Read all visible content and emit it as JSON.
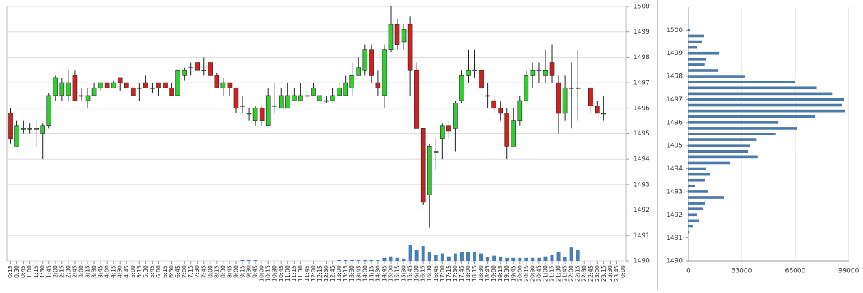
{
  "chart_data": [
    {
      "type": "candlestick",
      "categories": [
        "0:15",
        "0:30",
        "0:45",
        "1:00",
        "1:15",
        "1:30",
        "1:45",
        "2:00",
        "2:15",
        "2:30",
        "2:45",
        "3:00",
        "3:15",
        "3:30",
        "3:45",
        "4:00",
        "4:15",
        "4:30",
        "4:45",
        "5:00",
        "5:15",
        "5:30",
        "5:45",
        "6:00",
        "6:15",
        "6:30",
        "6:45",
        "7:00",
        "7:15",
        "7:30",
        "7:45",
        "8:00",
        "8:15",
        "8:30",
        "8:45",
        "9:00",
        "9:15",
        "9:30",
        "9:45",
        "10:00",
        "10:15",
        "10:30",
        "10:45",
        "11:00",
        "11:15",
        "11:30",
        "11:45",
        "12:00",
        "12:15",
        "12:30",
        "12:45",
        "13:00",
        "13:15",
        "13:30",
        "13:45",
        "14:00",
        "14:15",
        "14:30",
        "14:45",
        "15:00",
        "15:15",
        "15:30",
        "15:45",
        "16:00",
        "16:15",
        "16:30",
        "16:45",
        "17:00",
        "17:15",
        "17:30",
        "17:45",
        "18:00",
        "18:15",
        "18:30",
        "18:45",
        "19:00",
        "19:15",
        "19:30",
        "19:45",
        "20:00",
        "20:15",
        "20:30",
        "20:45",
        "21:00",
        "21:15",
        "21:30",
        "21:45",
        "22:00",
        "22:15",
        "22:30",
        "22:45",
        "23:00",
        "23:15",
        "23:30",
        "23:45",
        "0:00"
      ],
      "open": [
        1495.8,
        1494.5,
        1495.2,
        1495.2,
        1495.2,
        1495.0,
        1495.3,
        1496.5,
        1496.5,
        1496.5,
        1497.3,
        1496.5,
        1496.3,
        1496.5,
        1496.8,
        1497.0,
        1496.8,
        1497.2,
        1497.0,
        1496.8,
        1496.8,
        1497.0,
        1496.8,
        1497.0,
        1497.0,
        1496.8,
        1496.5,
        1497.3,
        1497.6,
        1497.8,
        1497.5,
        1497.8,
        1497.3,
        1496.8,
        1497.0,
        1496.8,
        1496.1,
        1495.8,
        1495.5,
        1496.0,
        1495.3,
        1496.1,
        1496.0,
        1496.0,
        1496.3,
        1496.3,
        1496.5,
        1496.5,
        1496.3,
        1496.3,
        1496.3,
        1496.5,
        1496.5,
        1496.8,
        1497.3,
        1497.5,
        1498.3,
        1497.0,
        1496.5,
        1498.3,
        1499.3,
        1498.6,
        1499.3,
        1497.5,
        1495.2,
        1492.6,
        1494.3,
        1494.8,
        1495.3,
        1495.2,
        1496.3,
        1497.3,
        1497.5,
        1497.5,
        1496.5,
        1496.3,
        1496.0,
        1495.8,
        1494.5,
        1495.5,
        1496.3,
        1497.3,
        1497.5,
        1497.3,
        1497.8,
        1497.0,
        1495.8,
        1496.8,
        1496.8,
        null,
        1496.8,
        1496.1,
        1495.8,
        null,
        null,
        null
      ],
      "high": [
        1496.0,
        1495.5,
        1495.5,
        1495.4,
        1495.5,
        1495.4,
        1496.6,
        1497.3,
        1497.2,
        1497.5,
        1497.5,
        1496.8,
        1496.8,
        1497.0,
        1497.0,
        1497.0,
        1497.1,
        1497.2,
        1497.0,
        1496.9,
        1497.0,
        1497.3,
        1497.0,
        1497.0,
        1497.0,
        1497.0,
        1497.6,
        1497.6,
        1497.8,
        1497.8,
        1498.0,
        1497.8,
        1497.4,
        1497.2,
        1497.0,
        1496.8,
        1496.5,
        1496.0,
        1496.1,
        1496.1,
        1496.8,
        1497.0,
        1496.8,
        1497.0,
        1496.8,
        1497.0,
        1496.8,
        1497.0,
        1496.8,
        1496.5,
        1496.8,
        1497.0,
        1497.3,
        1497.8,
        1498.0,
        1498.5,
        1498.5,
        1497.5,
        1498.5,
        1500.0,
        1499.5,
        1499.3,
        1499.6,
        1497.8,
        1495.2,
        1494.6,
        1494.8,
        1495.4,
        1495.5,
        1496.3,
        1497.5,
        1498.3,
        1498.3,
        1497.6,
        1497.0,
        1496.5,
        1496.3,
        1496.0,
        1496.0,
        1496.5,
        1497.5,
        1497.8,
        1497.8,
        1498.3,
        1498.5,
        1497.3,
        1497.3,
        1497.8,
        1498.3,
        null,
        1496.8,
        1496.3,
        1496.5,
        null,
        null,
        null
      ],
      "low": [
        1494.6,
        1494.5,
        1495.0,
        1495.0,
        1494.5,
        1494.0,
        1495.2,
        1496.3,
        1496.3,
        1496.3,
        1496.3,
        1496.3,
        1496.0,
        1496.5,
        1496.7,
        1496.8,
        1496.8,
        1496.7,
        1496.8,
        1496.5,
        1496.3,
        1496.8,
        1496.6,
        1496.5,
        1496.8,
        1496.5,
        1496.5,
        1497.1,
        1497.3,
        1497.5,
        1497.3,
        1497.3,
        1496.8,
        1496.5,
        1496.5,
        1495.8,
        1495.8,
        1495.5,
        1495.3,
        1495.3,
        1495.3,
        1495.8,
        1496.0,
        1496.0,
        1496.3,
        1496.3,
        1496.3,
        1496.5,
        1496.3,
        1496.2,
        1496.3,
        1496.5,
        1496.5,
        1496.5,
        1497.3,
        1497.3,
        1497.0,
        1496.5,
        1496.0,
        1498.2,
        1498.3,
        1498.3,
        1496.5,
        1495.2,
        1492.2,
        1491.3,
        1493.6,
        1494.0,
        1494.8,
        1494.3,
        1496.2,
        1497.0,
        1497.2,
        1496.8,
        1496.0,
        1495.8,
        1495.5,
        1494.0,
        1494.5,
        1495.3,
        1496.3,
        1496.8,
        1497.0,
        1497.0,
        1497.0,
        1495.0,
        1495.5,
        1495.2,
        1495.5,
        null,
        1495.8,
        1495.8,
        1495.5,
        null,
        null,
        null
      ],
      "close": [
        1494.8,
        1495.3,
        1495.2,
        1495.2,
        1495.2,
        1495.3,
        1496.5,
        1497.2,
        1497.0,
        1497.0,
        1496.3,
        1496.5,
        1496.5,
        1496.8,
        1497.0,
        1496.8,
        1497.0,
        1497.0,
        1496.8,
        1496.5,
        1496.8,
        1496.8,
        1496.8,
        1496.8,
        1496.8,
        1496.5,
        1497.5,
        1497.5,
        1497.6,
        1497.5,
        1497.5,
        1497.3,
        1496.8,
        1497.0,
        1496.8,
        1496.0,
        1496.1,
        1495.8,
        1496.0,
        1495.5,
        1496.5,
        1496.1,
        1496.5,
        1496.5,
        1496.5,
        1496.5,
        1496.5,
        1496.8,
        1496.5,
        1496.3,
        1496.5,
        1496.8,
        1497.0,
        1497.3,
        1497.6,
        1498.3,
        1497.3,
        1496.8,
        1498.3,
        1499.3,
        1498.5,
        1499.1,
        1497.5,
        1495.2,
        1492.3,
        1494.5,
        1494.3,
        1495.3,
        1495.1,
        1496.2,
        1497.3,
        1497.5,
        1497.5,
        1496.8,
        1496.5,
        1496.0,
        1495.8,
        1494.5,
        1495.5,
        1496.3,
        1497.3,
        1497.5,
        1497.5,
        1497.5,
        1497.3,
        1495.8,
        1496.8,
        1496.8,
        1496.8,
        null,
        1496.1,
        1495.8,
        1495.8,
        null,
        null,
        null
      ],
      "volume": [
        0,
        0,
        0,
        0,
        0,
        0,
        0,
        0,
        0,
        0,
        0,
        0,
        0,
        0,
        0,
        0,
        0,
        0,
        0,
        0,
        0,
        0,
        0,
        0,
        0,
        0,
        0,
        0,
        0,
        0,
        0,
        0,
        0,
        0,
        0,
        0,
        1,
        1,
        1,
        0,
        0,
        0,
        0,
        0,
        0,
        0,
        0,
        0,
        0,
        0,
        0,
        1,
        1,
        1,
        1,
        1,
        1,
        1,
        4,
        6,
        4,
        3,
        21,
        15,
        20,
        12,
        8,
        10,
        6,
        10,
        12,
        12,
        12,
        10,
        5,
        7,
        5,
        4,
        4,
        4,
        4,
        4,
        4,
        6,
        8,
        12,
        5,
        18,
        15,
        0,
        0,
        0,
        0,
        0,
        0,
        0
      ],
      "up_color": "#33cc33",
      "down_color": "#cc2222",
      "volume_color": "#4a7fb5",
      "ylim": [
        1490,
        1500
      ],
      "yticks": [
        1490,
        1491,
        1492,
        1493,
        1494,
        1495,
        1496,
        1497,
        1498,
        1499,
        1500
      ],
      "grid": true
    },
    {
      "type": "barh",
      "categories": [
        1491.25,
        1491.5,
        1491.75,
        1492,
        1492.25,
        1492.5,
        1492.75,
        1493,
        1493.25,
        1493.5,
        1493.75,
        1494,
        1494.25,
        1494.5,
        1494.75,
        1495,
        1495.25,
        1495.5,
        1495.75,
        1496,
        1496.25,
        1496.5,
        1496.75,
        1497,
        1497.25,
        1497.5,
        1497.75,
        1498,
        1498.25,
        1498.5,
        1498.75,
        1499,
        1499.25,
        1499.5,
        1499.75,
        1500
      ],
      "values": [
        500,
        3000,
        6600,
        5300,
        8800,
        10500,
        22000,
        12000,
        4400,
        10500,
        13600,
        11000,
        26000,
        43000,
        37000,
        38000,
        42000,
        54000,
        67000,
        55500,
        78000,
        96800,
        94600,
        96000,
        89000,
        79000,
        66000,
        35000,
        18500,
        10000,
        11000,
        19000,
        5300,
        8400,
        9700,
        1000
      ],
      "color": "#4a7aaa",
      "xlim": [
        0,
        99000
      ],
      "xticks": [
        0,
        33000,
        66000,
        99000
      ],
      "ylim": [
        1490,
        1501
      ],
      "yticks": [
        1490,
        1491,
        1492,
        1493,
        1494,
        1495,
        1496,
        1497,
        1498,
        1499,
        1500
      ],
      "grid": true
    }
  ]
}
